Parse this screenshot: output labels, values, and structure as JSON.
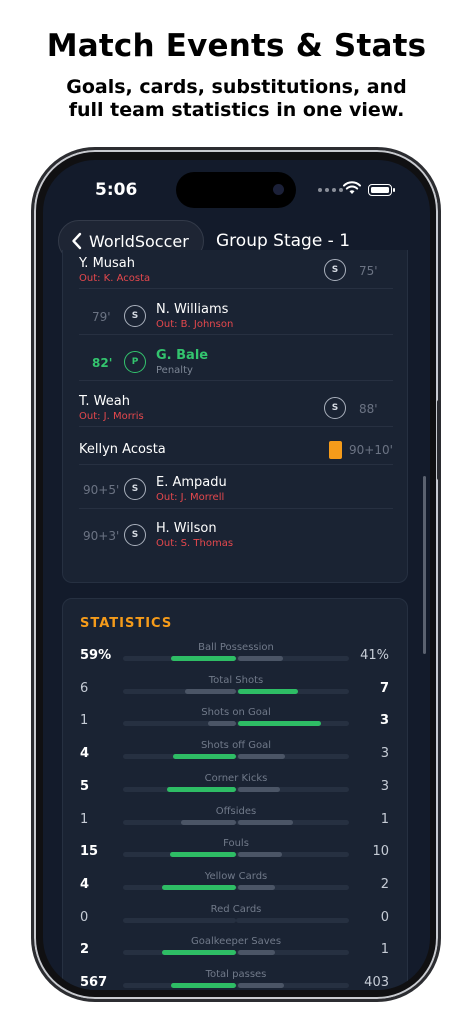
{
  "promo": {
    "headline": "Match Events & Stats",
    "subline_1": "Goals, cards, substitutions, and",
    "subline_2": "full team statistics in one view."
  },
  "status_bar": {
    "time": "5:06"
  },
  "nav": {
    "back_label": "WorldSoccer",
    "title": "Group Stage - 1"
  },
  "events": [
    {
      "side": "right",
      "player": "Y. Musah",
      "detail": "Out: K. Acosta",
      "detail_type": "out",
      "minute": "75'",
      "icon": "S",
      "kind": "substitution"
    },
    {
      "side": "left",
      "player": "N. Williams",
      "detail": "Out: B. Johnson",
      "detail_type": "out",
      "minute": "79'",
      "icon": "S",
      "kind": "substitution"
    },
    {
      "side": "left",
      "player": "G. Bale",
      "detail": "Penalty",
      "detail_type": "note",
      "minute": "82'",
      "icon": "P",
      "kind": "goal"
    },
    {
      "side": "right",
      "player": "T. Weah",
      "detail": "Out: J. Morris",
      "detail_type": "out",
      "minute": "88'",
      "icon": "S",
      "kind": "substitution"
    },
    {
      "side": "right",
      "player": "Kellyn Acosta",
      "detail": "",
      "detail_type": "none",
      "minute": "90+10'",
      "icon": "",
      "kind": "yellow-card"
    },
    {
      "side": "left",
      "player": "E. Ampadu",
      "detail": "Out: J. Morrell",
      "detail_type": "out",
      "minute": "90+5'",
      "icon": "S",
      "kind": "substitution"
    },
    {
      "side": "left",
      "player": "H. Wilson",
      "detail": "Out: S. Thomas",
      "detail_type": "out",
      "minute": "90+3'",
      "icon": "S",
      "kind": "substitution"
    }
  ],
  "statistics": {
    "title": "STATISTICS",
    "rows": [
      {
        "label": "Ball Possession",
        "home": "59%",
        "away": "41%",
        "home_value": 59,
        "away_value": 41
      },
      {
        "label": "Total Shots",
        "home": "6",
        "away": "7",
        "home_value": 6,
        "away_value": 7
      },
      {
        "label": "Shots on Goal",
        "home": "1",
        "away": "3",
        "home_value": 1,
        "away_value": 3
      },
      {
        "label": "Shots off Goal",
        "home": "4",
        "away": "3",
        "home_value": 4,
        "away_value": 3
      },
      {
        "label": "Corner Kicks",
        "home": "5",
        "away": "3",
        "home_value": 5,
        "away_value": 3
      },
      {
        "label": "Offsides",
        "home": "1",
        "away": "1",
        "home_value": 1,
        "away_value": 1
      },
      {
        "label": "Fouls",
        "home": "15",
        "away": "10",
        "home_value": 15,
        "away_value": 10
      },
      {
        "label": "Yellow Cards",
        "home": "4",
        "away": "2",
        "home_value": 4,
        "away_value": 2
      },
      {
        "label": "Red Cards",
        "home": "0",
        "away": "0",
        "home_value": 0,
        "away_value": 0
      },
      {
        "label": "Goalkeeper Saves",
        "home": "2",
        "away": "1",
        "home_value": 2,
        "away_value": 1
      },
      {
        "label": "Total passes",
        "home": "567",
        "away": "403",
        "home_value": 567,
        "away_value": 403
      }
    ]
  },
  "colors": {
    "background": "#131b2b",
    "card": "#1a2333",
    "accent": "#f59b1a",
    "win_bar": "#2ebd65",
    "red_text": "#e5484d",
    "goal_green": "#33c46e"
  }
}
